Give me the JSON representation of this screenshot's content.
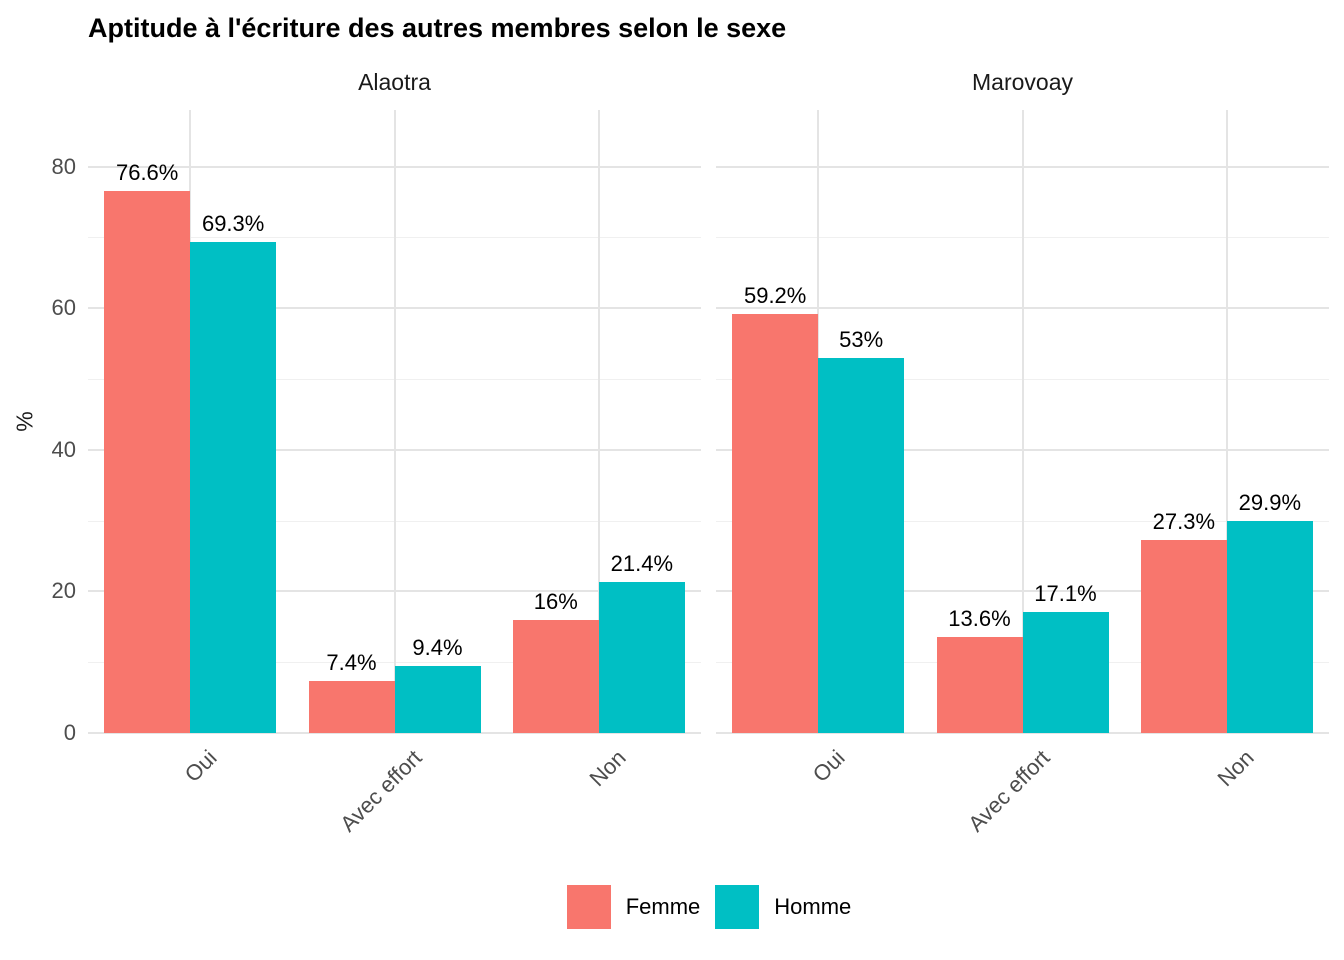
{
  "chart_data": {
    "type": "bar",
    "title": "Aptitude à l'écriture des autres membres selon le sexe",
    "ylabel": "%",
    "ylim": [
      0,
      88
    ],
    "y_major_ticks": [
      0,
      20,
      40,
      60,
      80
    ],
    "y_minor_ticks": [
      10,
      30,
      50,
      70
    ],
    "grid": true,
    "legend_position": "bottom",
    "categories": [
      "Oui",
      "Avec effort",
      "Non"
    ],
    "facets": [
      {
        "label": "Alaotra",
        "series": [
          {
            "name": "Femme",
            "values": [
              76.6,
              7.4,
              16
            ],
            "labels": [
              "76.6%",
              "7.4%",
              "16%"
            ]
          },
          {
            "name": "Homme",
            "values": [
              69.3,
              9.4,
              21.4
            ],
            "labels": [
              "69.3%",
              "9.4%",
              "21.4%"
            ]
          }
        ]
      },
      {
        "label": "Marovoay",
        "series": [
          {
            "name": "Femme",
            "values": [
              59.2,
              13.6,
              27.3
            ],
            "labels": [
              "59.2%",
              "13.6%",
              "27.3%"
            ]
          },
          {
            "name": "Homme",
            "values": [
              53,
              17.1,
              29.9
            ],
            "labels": [
              "53%",
              "17.1%",
              "29.9%"
            ]
          }
        ]
      }
    ],
    "legend": [
      {
        "label": "Femme",
        "color": "#F8766D"
      },
      {
        "label": "Homme",
        "color": "#00BFC4"
      }
    ],
    "colors": {
      "femme": "#F8766D",
      "homme": "#00BFC4",
      "grid_major": "#E4E4E4",
      "grid_minor": "#F0F0F0",
      "axis_text": "#4D4D4D",
      "value_text": "#000000",
      "strip_text": "#1A1A1A"
    }
  }
}
